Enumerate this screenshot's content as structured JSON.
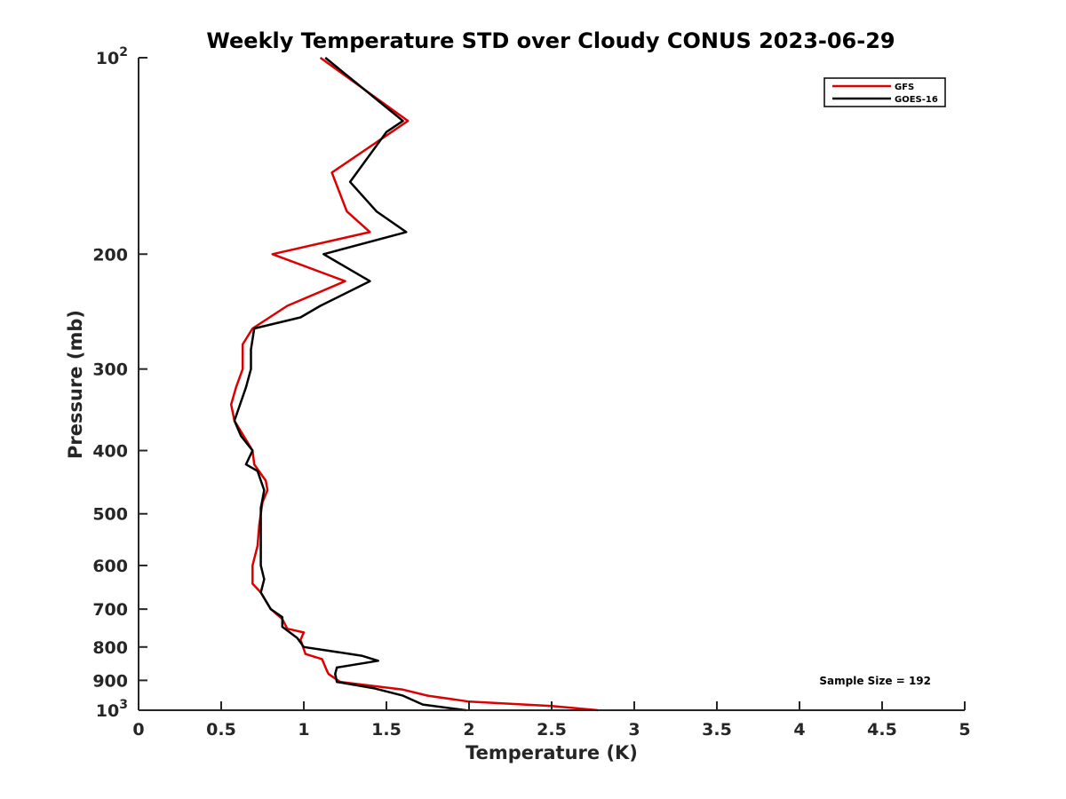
{
  "chart_data": {
    "type": "line",
    "title": "Weekly Temperature STD over Cloudy CONUS 2023-06-29",
    "xlabel": "Temperature (K)",
    "ylabel": "Pressure (mb)",
    "xlim": [
      0,
      5
    ],
    "ylim": [
      100,
      1000
    ],
    "yscale": "log",
    "yreversed": true,
    "grid": false,
    "x_ticks": [
      0,
      0.5,
      1,
      1.5,
      2,
      2.5,
      3,
      3.5,
      4,
      4.5,
      5
    ],
    "x_tick_labels": [
      "0",
      "0.5",
      "1",
      "1.5",
      "2",
      "2.5",
      "3",
      "3.5",
      "4",
      "4.5",
      "5"
    ],
    "y_ticks": [
      {
        "value": 100,
        "base": "10",
        "exp": "2"
      },
      {
        "value": 200,
        "label": "200"
      },
      {
        "value": 300,
        "label": "300"
      },
      {
        "value": 400,
        "label": "400"
      },
      {
        "value": 500,
        "label": "500"
      },
      {
        "value": 600,
        "label": "600"
      },
      {
        "value": 700,
        "label": "700"
      },
      {
        "value": 800,
        "label": "800"
      },
      {
        "value": 900,
        "label": "900"
      },
      {
        "value": 1000,
        "base": "10",
        "exp": "3"
      }
    ],
    "legend_position": "top-right",
    "annotation": "Sample Size = 192",
    "series": [
      {
        "name": "GFS",
        "color": "#dd0000",
        "points": [
          [
            1.1,
            100
          ],
          [
            1.63,
            125
          ],
          [
            1.17,
            150
          ],
          [
            1.26,
            172
          ],
          [
            1.4,
            185
          ],
          [
            0.81,
            200
          ],
          [
            1.25,
            220
          ],
          [
            0.9,
            240
          ],
          [
            0.69,
            260
          ],
          [
            0.63,
            275
          ],
          [
            0.63,
            300
          ],
          [
            0.59,
            320
          ],
          [
            0.56,
            340
          ],
          [
            0.58,
            360
          ],
          [
            0.69,
            400
          ],
          [
            0.7,
            420
          ],
          [
            0.77,
            445
          ],
          [
            0.78,
            460
          ],
          [
            0.75,
            480
          ],
          [
            0.73,
            520
          ],
          [
            0.72,
            560
          ],
          [
            0.69,
            600
          ],
          [
            0.69,
            640
          ],
          [
            0.74,
            660
          ],
          [
            0.8,
            700
          ],
          [
            0.87,
            725
          ],
          [
            0.9,
            750
          ],
          [
            1.0,
            760
          ],
          [
            0.98,
            780
          ],
          [
            1.01,
            820
          ],
          [
            1.11,
            835
          ],
          [
            1.14,
            870
          ],
          [
            1.15,
            880
          ],
          [
            1.22,
            905
          ],
          [
            1.6,
            930
          ],
          [
            1.75,
            950
          ],
          [
            2.0,
            970
          ],
          [
            2.5,
            985
          ],
          [
            2.78,
            1000
          ]
        ]
      },
      {
        "name": "GOES-16",
        "color": "#000000",
        "points": [
          [
            1.13,
            100
          ],
          [
            1.6,
            125
          ],
          [
            1.5,
            130
          ],
          [
            1.28,
            155
          ],
          [
            1.44,
            172
          ],
          [
            1.62,
            185
          ],
          [
            1.12,
            200
          ],
          [
            1.4,
            220
          ],
          [
            1.1,
            240
          ],
          [
            0.98,
            250
          ],
          [
            0.7,
            260
          ],
          [
            0.68,
            280
          ],
          [
            0.68,
            300
          ],
          [
            0.65,
            320
          ],
          [
            0.58,
            360
          ],
          [
            0.62,
            380
          ],
          [
            0.69,
            400
          ],
          [
            0.65,
            420
          ],
          [
            0.72,
            430
          ],
          [
            0.76,
            460
          ],
          [
            0.74,
            490
          ],
          [
            0.74,
            600
          ],
          [
            0.76,
            630
          ],
          [
            0.74,
            660
          ],
          [
            0.8,
            700
          ],
          [
            0.87,
            720
          ],
          [
            0.87,
            745
          ],
          [
            0.96,
            775
          ],
          [
            1.0,
            800
          ],
          [
            1.35,
            825
          ],
          [
            1.45,
            840
          ],
          [
            1.2,
            860
          ],
          [
            1.19,
            880
          ],
          [
            1.2,
            905
          ],
          [
            1.42,
            925
          ],
          [
            1.6,
            950
          ],
          [
            1.72,
            980
          ],
          [
            1.98,
            1000
          ]
        ]
      }
    ]
  }
}
